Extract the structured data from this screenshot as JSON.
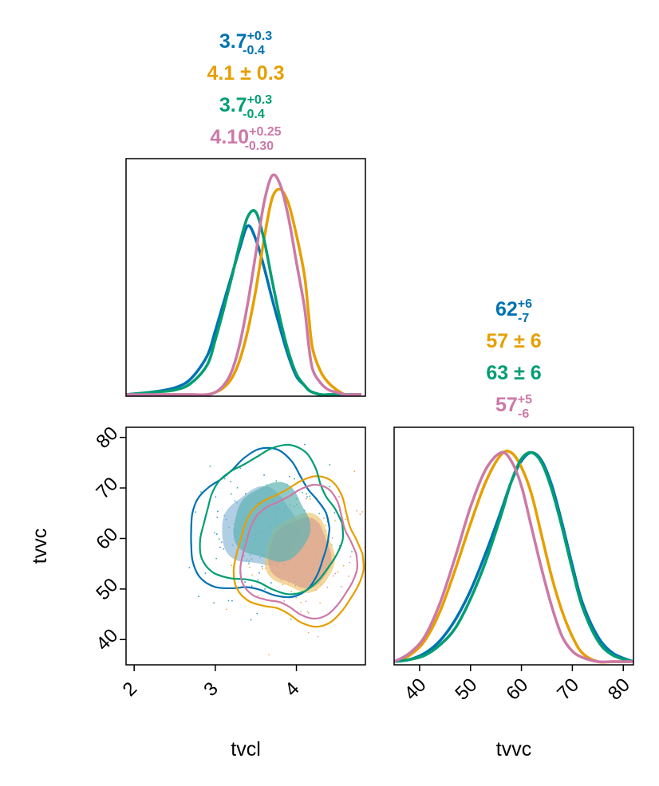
{
  "colors": {
    "series": [
      "#0072B2",
      "#E69F00",
      "#009E73",
      "#CC79A7"
    ],
    "fill_teal": "#5fb3b3",
    "fill_blue": "#8fb9d8",
    "fill_orange": "#f0c870",
    "fill_rose": "#d9a092"
  },
  "chart_data": [
    {
      "type": "line",
      "panel": "marginal-tvcl",
      "xlim": [
        1.9,
        4.85
      ],
      "x": [
        1.9,
        2.2,
        2.5,
        2.7,
        2.9,
        3.0,
        3.1,
        3.2,
        3.3,
        3.4,
        3.5,
        3.6,
        3.7,
        3.8,
        3.9,
        4.0,
        4.1,
        4.15,
        4.2,
        4.3,
        4.4,
        4.5,
        4.6,
        4.7,
        4.8
      ],
      "series": [
        {
          "values": [
            0.0,
            0.01,
            0.03,
            0.07,
            0.17,
            0.28,
            0.4,
            0.52,
            0.64,
            0.74,
            0.68,
            0.56,
            0.42,
            0.29,
            0.17,
            0.08,
            0.04,
            0.02,
            0.01,
            0.0,
            0.0,
            0.0,
            0.0,
            0.0,
            0.0
          ]
        },
        {
          "values": [
            0.0,
            0.0,
            0.0,
            0.0,
            0.0,
            0.01,
            0.03,
            0.07,
            0.15,
            0.28,
            0.46,
            0.68,
            0.86,
            0.9,
            0.84,
            0.7,
            0.52,
            0.35,
            0.2,
            0.1,
            0.05,
            0.02,
            0.0,
            0.0,
            0.0
          ]
        },
        {
          "values": [
            0.0,
            0.01,
            0.02,
            0.05,
            0.13,
            0.24,
            0.37,
            0.51,
            0.66,
            0.78,
            0.8,
            0.68,
            0.5,
            0.33,
            0.19,
            0.09,
            0.04,
            0.02,
            0.01,
            0.0,
            0.0,
            0.0,
            0.0,
            0.0,
            0.0
          ]
        },
        {
          "values": [
            0.0,
            0.0,
            0.0,
            0.0,
            0.0,
            0.01,
            0.04,
            0.1,
            0.22,
            0.4,
            0.62,
            0.84,
            0.96,
            0.92,
            0.78,
            0.58,
            0.38,
            0.22,
            0.11,
            0.05,
            0.02,
            0.01,
            0.0,
            0.0,
            0.0
          ]
        }
      ]
    },
    {
      "type": "line",
      "panel": "marginal-tvvc",
      "xlim": [
        35,
        82
      ],
      "x": [
        35,
        38,
        41,
        44,
        47,
        50,
        53,
        56,
        58,
        60,
        62,
        64,
        66,
        68,
        70,
        72,
        75,
        78,
        82
      ],
      "series": [
        {
          "values": [
            0.0,
            0.01,
            0.04,
            0.1,
            0.2,
            0.34,
            0.52,
            0.72,
            0.86,
            0.96,
            1.0,
            0.96,
            0.84,
            0.66,
            0.46,
            0.28,
            0.12,
            0.04,
            0.0
          ]
        },
        {
          "values": [
            0.0,
            0.03,
            0.1,
            0.24,
            0.44,
            0.66,
            0.86,
            0.99,
            1.0,
            0.93,
            0.8,
            0.6,
            0.4,
            0.24,
            0.12,
            0.04,
            0.0,
            0.0,
            0.0
          ]
        },
        {
          "values": [
            0.0,
            0.01,
            0.03,
            0.08,
            0.16,
            0.3,
            0.48,
            0.7,
            0.86,
            0.97,
            1.0,
            0.95,
            0.82,
            0.64,
            0.44,
            0.26,
            0.1,
            0.03,
            0.0
          ]
        },
        {
          "values": [
            0.0,
            0.04,
            0.12,
            0.28,
            0.5,
            0.74,
            0.92,
            1.0,
            0.96,
            0.84,
            0.64,
            0.44,
            0.26,
            0.12,
            0.05,
            0.02,
            0.0,
            0.0,
            0.0
          ]
        }
      ]
    },
    {
      "type": "scatter",
      "panel": "joint-tvcl-tvvc",
      "xlabel": "tvcl",
      "ylabel": "tvvc",
      "xlim": [
        1.9,
        4.85
      ],
      "ylim": [
        35,
        82
      ],
      "xticks": [
        "2",
        "3",
        "4"
      ],
      "yticks": [
        "40",
        "50",
        "60",
        "70",
        "80"
      ],
      "regions": [
        {
          "series": 0,
          "cx": 3.55,
          "cy": 62,
          "rx": 0.55,
          "ry": 9
        },
        {
          "series": 1,
          "cx": 4.05,
          "cy": 57,
          "rx": 0.5,
          "ry": 9
        },
        {
          "series": 2,
          "cx": 3.7,
          "cy": 63,
          "rx": 0.55,
          "ry": 9
        },
        {
          "series": 3,
          "cx": 4.05,
          "cy": 57,
          "rx": 0.45,
          "ry": 8
        }
      ]
    }
  ],
  "top_stats": [
    {
      "main": "3.7",
      "sup": "+0.3",
      "sub": "-0.4"
    },
    {
      "main": "4.1 ± 0.3"
    },
    {
      "main": "3.7",
      "sup": "+0.3",
      "sub": "-0.4"
    },
    {
      "main": "4.10",
      "sup": "+0.25",
      "sub": "-0.30"
    }
  ],
  "right_stats": [
    {
      "main": "62",
      "sup": "+6",
      "sub": "-7"
    },
    {
      "main": "57 ± 6"
    },
    {
      "main": "63 ± 6"
    },
    {
      "main": "57",
      "sup": "+5",
      "sub": "-6"
    }
  ],
  "axes": {
    "bottom_left_xlabel": "tvcl",
    "bottom_right_xlabel": "tvvc",
    "left_ylabel": "tvvc",
    "bottom_left_xticks": [
      "2",
      "3",
      "4"
    ],
    "bottom_right_xticks": [
      "40",
      "50",
      "60",
      "70",
      "80"
    ]
  }
}
